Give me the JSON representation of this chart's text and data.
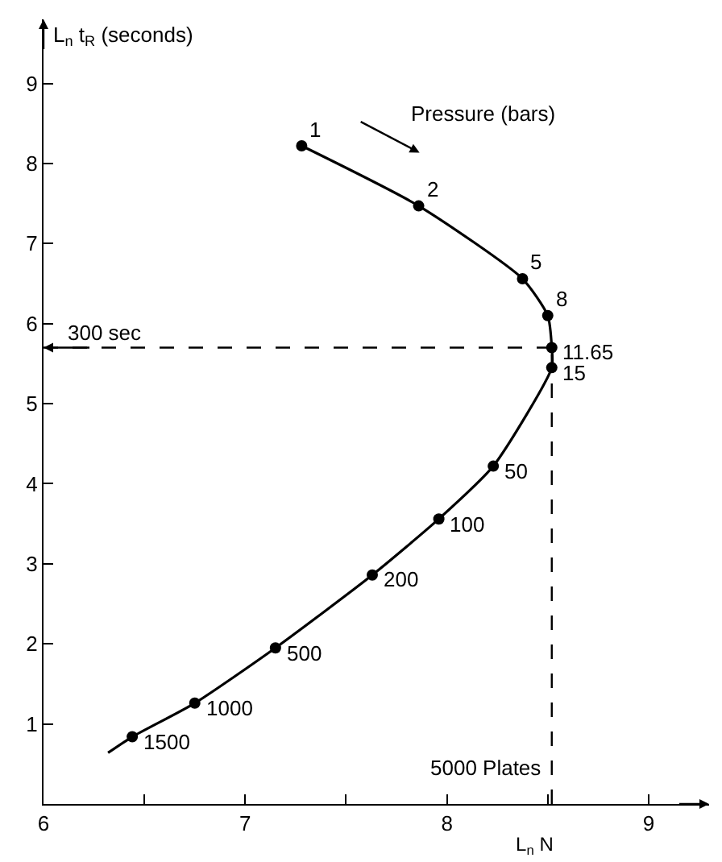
{
  "chart_data": {
    "type": "line",
    "xlabel": "L$_{n}$ N",
    "ylabel": "L$_{n}$ t$_{R}$ (seconds)",
    "annotations": [
      "Pressure (bars)",
      {
        "text": "1",
        "x": 7.28,
        "y": 8.22
      },
      {
        "text": "2",
        "x": 7.86,
        "y": 7.47
      },
      {
        "text": "5",
        "x": 8.375,
        "y": 6.56
      },
      {
        "text": "8",
        "x": 8.5,
        "y": 6.1
      },
      {
        "text": "11.65",
        "x": 8.52,
        "y": 5.7
      },
      {
        "text": "15",
        "x": 8.52,
        "y": 5.45
      },
      {
        "text": "50",
        "x": 8.23,
        "y": 4.22
      },
      {
        "text": "100",
        "x": 7.96,
        "y": 3.56
      },
      {
        "text": "200",
        "x": 7.63,
        "y": 2.86
      },
      {
        "text": "500",
        "x": 7.15,
        "y": 1.95
      },
      {
        "text": "1000",
        "x": 6.75,
        "y": 1.26
      },
      {
        "text": "1500",
        "x": 6.44,
        "y": 0.84
      }
    ],
    "series": [
      {
        "color": "#000000",
        "marker": "none",
        "x": [
          7.28,
          7.86,
          8.375,
          8.5,
          8.52,
          8.52,
          8.23,
          7.96,
          7.63,
          7.15,
          6.75,
          6.44,
          6.32
        ],
        "values": [
          8.22,
          7.47,
          6.56,
          6.1,
          5.7,
          5.45,
          4.22,
          3.56,
          2.86,
          1.95,
          1.26,
          0.84,
          0.64
        ]
      },
      {
        "type": "scatter",
        "color": "#000000",
        "marker": "circle",
        "x": [
          7.28,
          7.86,
          8.375,
          8.5,
          8.52,
          8.52,
          8.23,
          7.96,
          7.63,
          7.15,
          6.75,
          6.44
        ],
        "values": [
          8.22,
          7.47,
          6.56,
          6.1,
          5.7,
          5.45,
          4.22,
          3.56,
          2.86,
          1.95,
          1.26,
          0.84
        ]
      }
    ],
    "ref_lines": [
      {
        "axis": "y",
        "value": 5.7,
        "label": "300 sec",
        "line_style": "dashed",
        "color": "#000000"
      },
      {
        "axis": "x",
        "value": 8.52,
        "label": "5000 Plates",
        "line_style": "dashed",
        "color": "#000000"
      }
    ],
    "xlim": [
      6,
      9.3
    ],
    "ylim": [
      0,
      9.8
    ],
    "xticks": [
      6,
      {
        "value": 6.5,
        "label": null
      },
      7,
      {
        "value": 7.5,
        "label": null
      },
      8,
      {
        "value": 8.5,
        "label": null
      },
      9
    ],
    "yticks": [
      1,
      2,
      3,
      4,
      5,
      6,
      7,
      8,
      9
    ],
    "grid": false
  }
}
